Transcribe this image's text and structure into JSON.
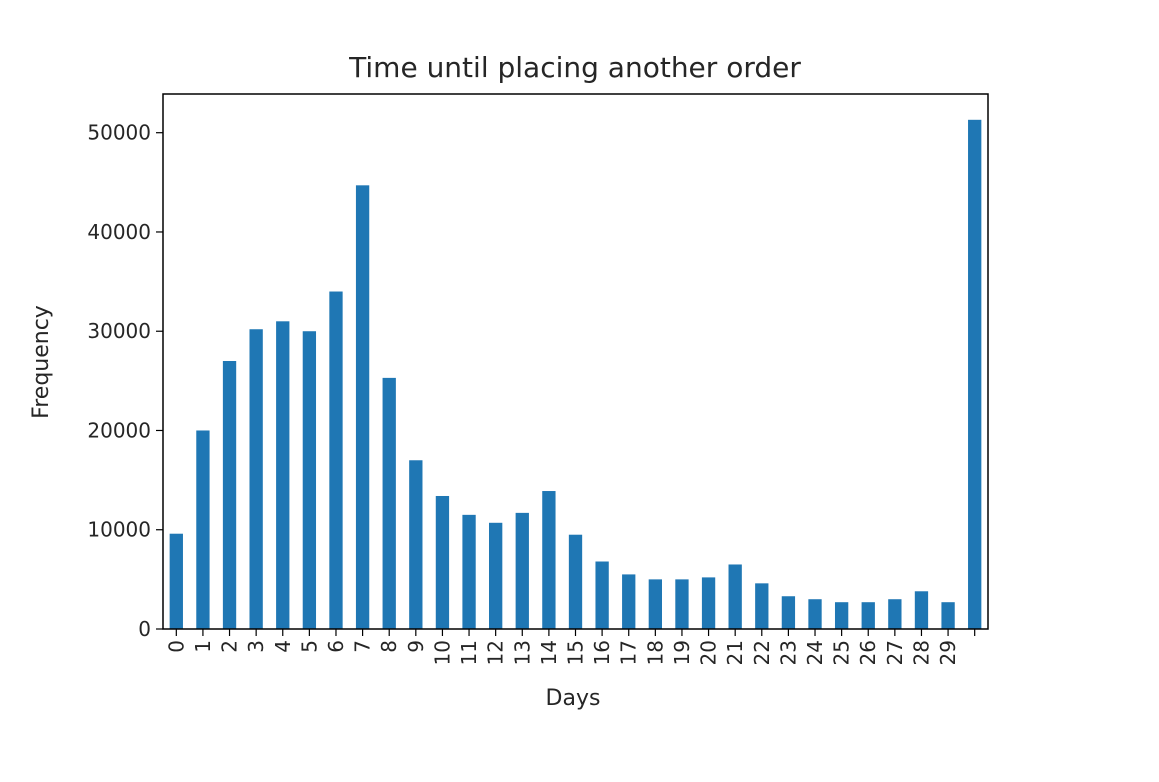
{
  "chart_data": {
    "type": "bar",
    "title": "Time until placing another order",
    "xlabel": "Days",
    "ylabel": "Frequency",
    "categories": [
      "0",
      "1",
      "2",
      "3",
      "4",
      "5",
      "6",
      "7",
      "8",
      "9",
      "10",
      "11",
      "12",
      "13",
      "14",
      "15",
      "16",
      "17",
      "18",
      "19",
      "20",
      "21",
      "22",
      "23",
      "24",
      "25",
      "26",
      "27",
      "28",
      "29",
      ""
    ],
    "values": [
      9600,
      20000,
      27000,
      30200,
      31000,
      30000,
      34000,
      44700,
      25300,
      17000,
      13400,
      11500,
      10700,
      11700,
      13900,
      9500,
      6800,
      5500,
      5000,
      5000,
      5200,
      6500,
      4600,
      3300,
      3000,
      2700,
      2700,
      3000,
      3800,
      2700,
      51300
    ],
    "ylim": [
      0,
      53900
    ],
    "yticks": [
      0,
      10000,
      20000,
      30000,
      40000,
      50000
    ],
    "ytick_labels": [
      "0",
      "10000",
      "20000",
      "30000",
      "40000",
      "50000"
    ],
    "grid": false,
    "bar_color": "#1f77b4"
  }
}
